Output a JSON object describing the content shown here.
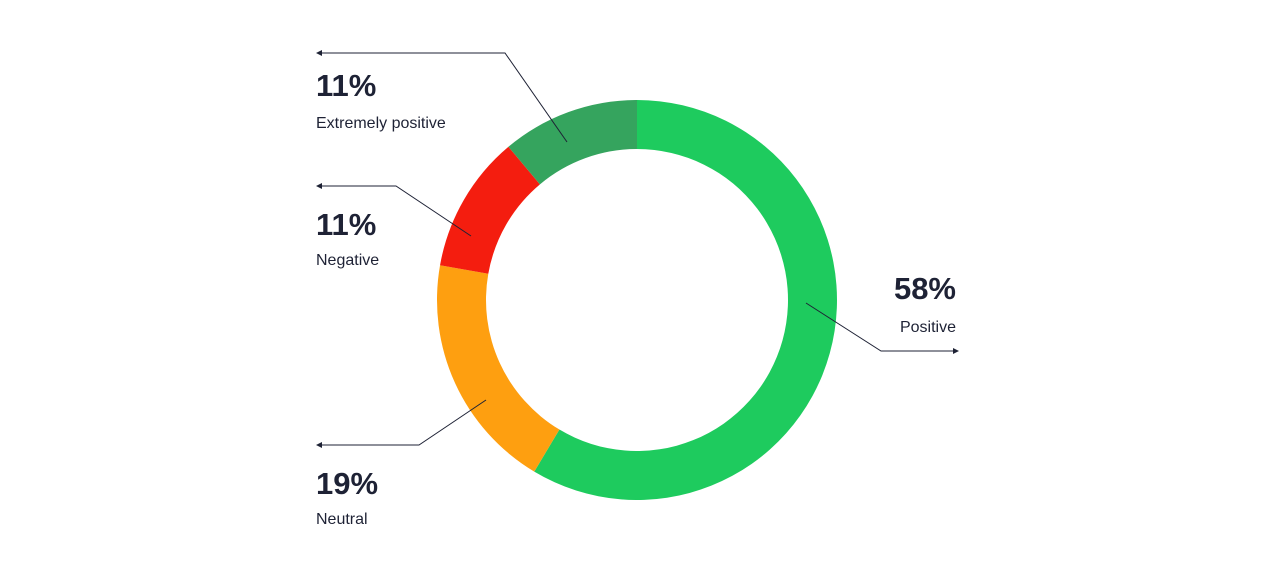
{
  "chart_data": {
    "type": "pie",
    "variant": "donut",
    "title": "",
    "slices": [
      {
        "label": "Positive",
        "value": 58,
        "value_label": "58%",
        "color": "#1ecb5e"
      },
      {
        "label": "Neutral",
        "value": 19,
        "value_label": "19%",
        "color": "#fe9f10"
      },
      {
        "label": "Negative",
        "value": 11,
        "value_label": "11%",
        "color": "#f41d0f"
      },
      {
        "label": "Extremely positive",
        "value": 11,
        "value_label": "11%",
        "color": "#35a45e"
      }
    ],
    "legend": "none",
    "label_style": "callouts with leader arrows"
  }
}
